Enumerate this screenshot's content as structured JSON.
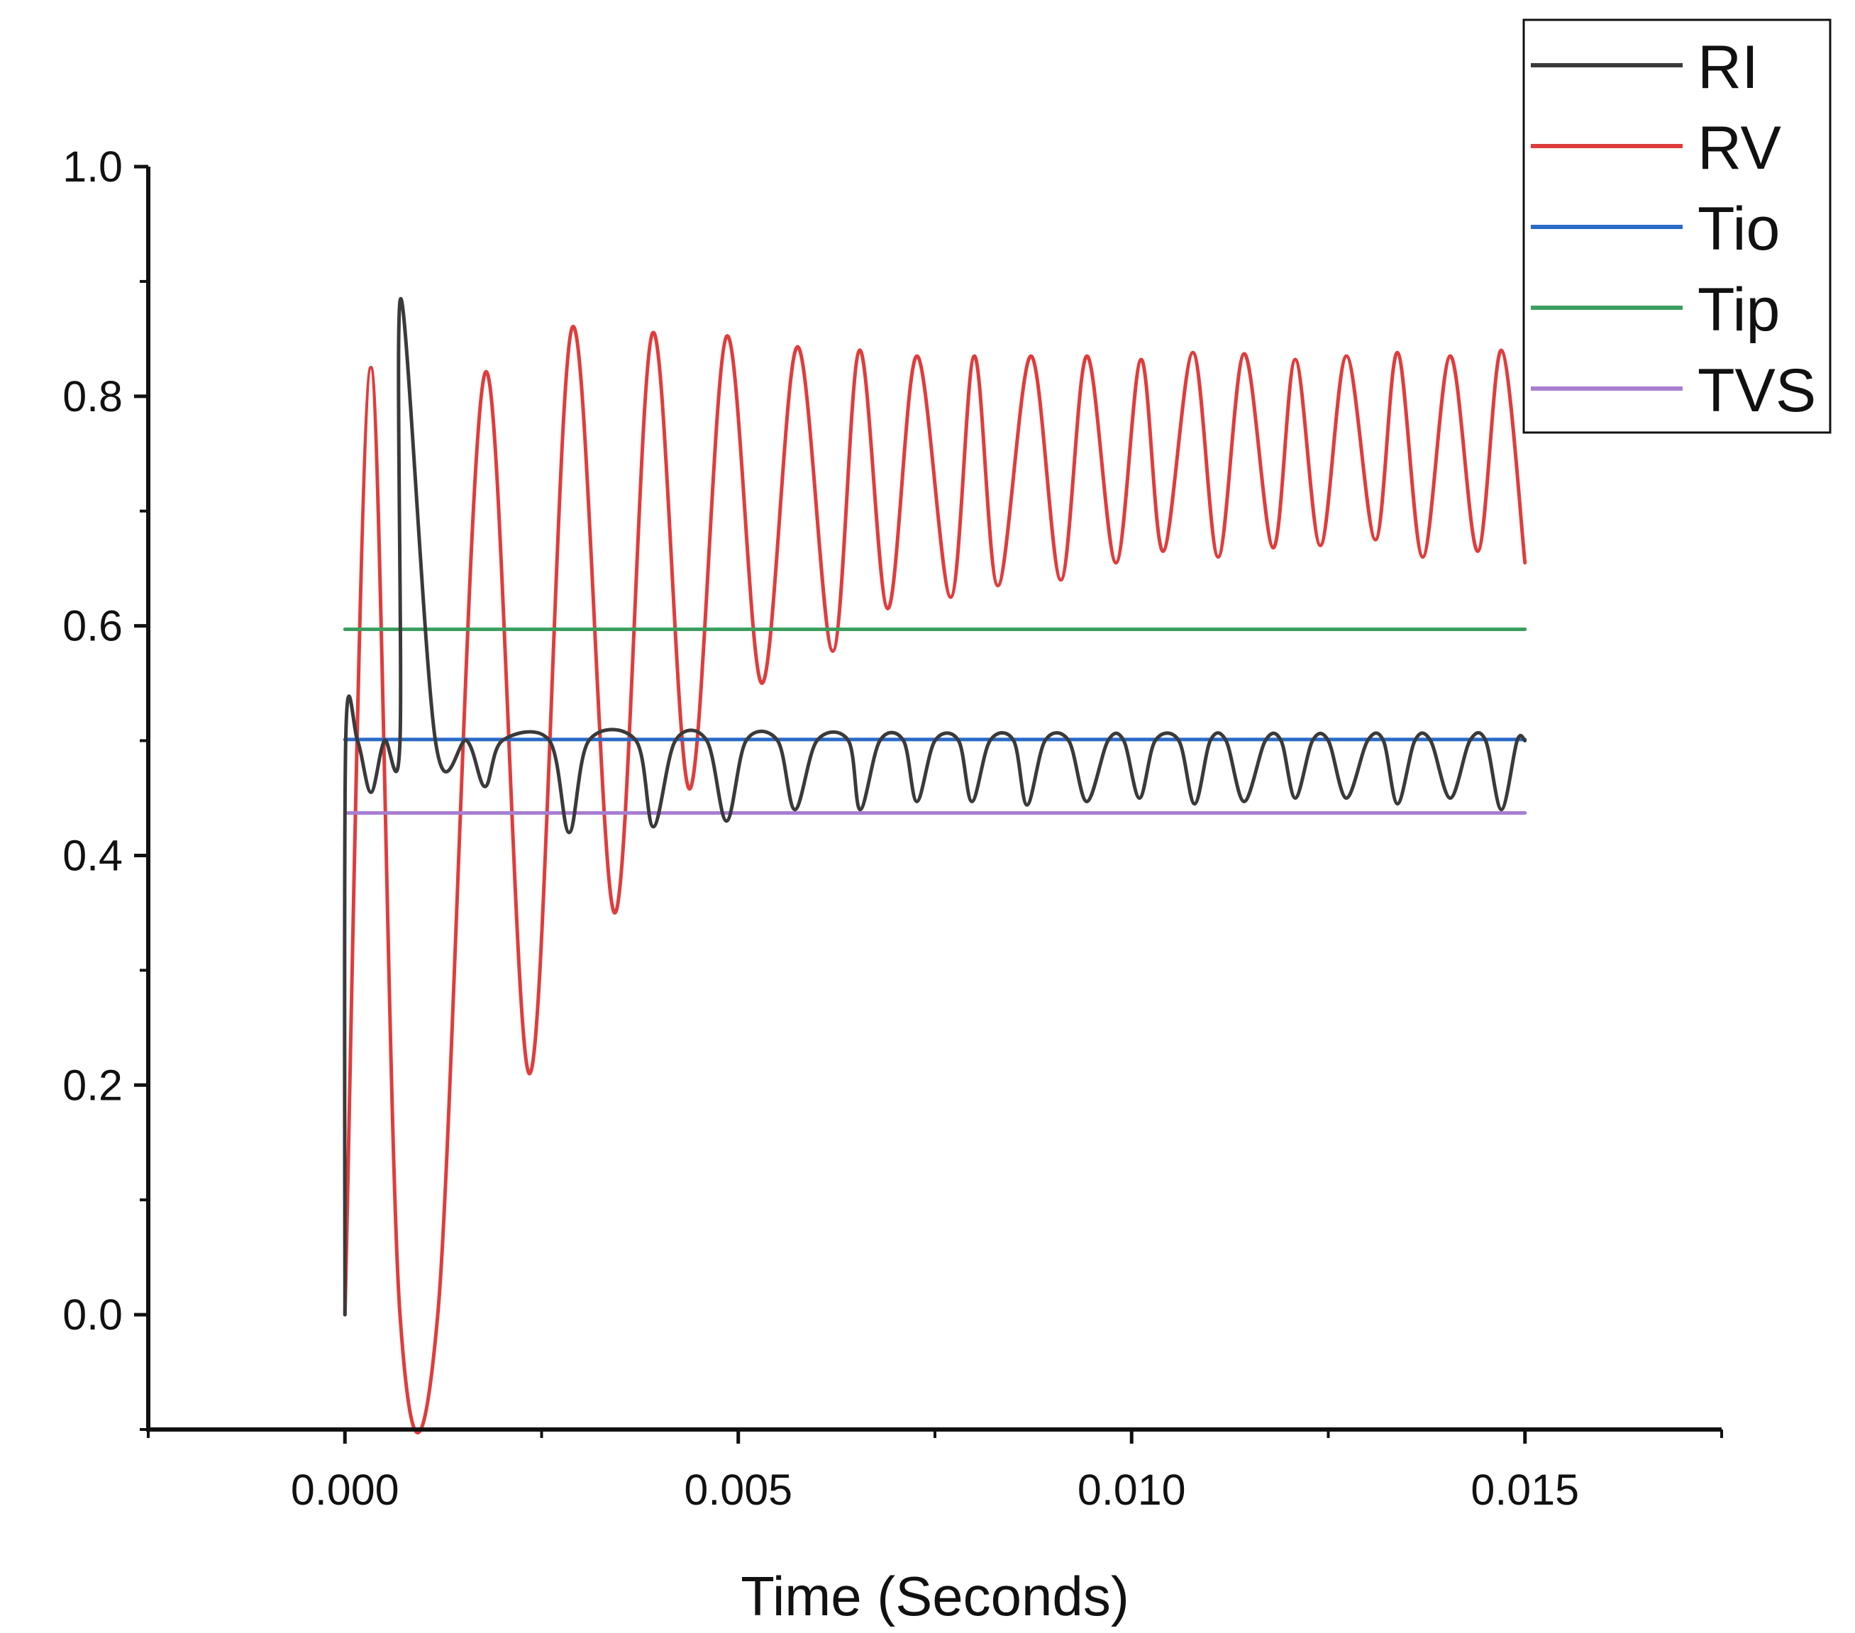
{
  "chart_data": {
    "type": "line",
    "title": "",
    "xlabel": "Time (Seconds)",
    "ylabel": "",
    "xlim": [
      -0.0025,
      0.0175
    ],
    "ylim": [
      -0.1,
      1.0
    ],
    "x_ticks": [
      0.0,
      0.005,
      0.01,
      0.015
    ],
    "x_tick_labels": [
      "0.000",
      "0.005",
      "0.010",
      "0.015"
    ],
    "y_ticks": [
      0.0,
      0.2,
      0.4,
      0.6,
      0.8,
      1.0
    ],
    "y_tick_labels": [
      "0.0",
      "0.2",
      "0.4",
      "0.6",
      "0.8",
      "1.0"
    ],
    "grid": false,
    "legend_position": "top-right",
    "series": [
      {
        "name": "RI",
        "color": "#3a3a3a",
        "points": [
          [
            0.0,
            0.0
          ],
          [
            1e-05,
            0.5
          ],
          [
            0.00016,
            0.5
          ],
          [
            0.00033,
            0.455
          ],
          [
            0.0005,
            0.5
          ],
          [
            0.0007,
            0.5
          ],
          [
            0.00071,
            0.885
          ],
          [
            0.00115,
            0.5
          ],
          [
            0.00155,
            0.5
          ],
          [
            0.00178,
            0.46
          ],
          [
            0.002,
            0.5
          ],
          [
            0.0026,
            0.5
          ],
          [
            0.00285,
            0.42
          ],
          [
            0.0031,
            0.5
          ],
          [
            0.0037,
            0.5
          ],
          [
            0.00392,
            0.425
          ],
          [
            0.0042,
            0.5
          ],
          [
            0.0046,
            0.5
          ],
          [
            0.00485,
            0.43
          ],
          [
            0.0051,
            0.5
          ],
          [
            0.0055,
            0.5
          ],
          [
            0.00572,
            0.44
          ],
          [
            0.006,
            0.5
          ],
          [
            0.0064,
            0.5
          ],
          [
            0.00655,
            0.44
          ],
          [
            0.0068,
            0.5
          ],
          [
            0.0071,
            0.5
          ],
          [
            0.00727,
            0.447
          ],
          [
            0.0075,
            0.5
          ],
          [
            0.0078,
            0.5
          ],
          [
            0.00797,
            0.447
          ],
          [
            0.0082,
            0.5
          ],
          [
            0.0085,
            0.5
          ],
          [
            0.00867,
            0.444
          ],
          [
            0.0089,
            0.5
          ],
          [
            0.0092,
            0.5
          ],
          [
            0.00943,
            0.447
          ],
          [
            0.0097,
            0.5
          ],
          [
            0.0099,
            0.5
          ],
          [
            0.0101,
            0.45
          ],
          [
            0.0103,
            0.5
          ],
          [
            0.0106,
            0.5
          ],
          [
            0.0108,
            0.445
          ],
          [
            0.011,
            0.5
          ],
          [
            0.0112,
            0.5
          ],
          [
            0.01143,
            0.447
          ],
          [
            0.0117,
            0.5
          ],
          [
            0.0119,
            0.5
          ],
          [
            0.01208,
            0.45
          ],
          [
            0.0123,
            0.5
          ],
          [
            0.0125,
            0.5
          ],
          [
            0.01273,
            0.45
          ],
          [
            0.013,
            0.5
          ],
          [
            0.0132,
            0.5
          ],
          [
            0.01338,
            0.445
          ],
          [
            0.0136,
            0.5
          ],
          [
            0.0138,
            0.5
          ],
          [
            0.01405,
            0.45
          ],
          [
            0.0143,
            0.5
          ],
          [
            0.0145,
            0.5
          ],
          [
            0.0147,
            0.44
          ],
          [
            0.0149,
            0.5
          ],
          [
            0.015,
            0.5
          ]
        ]
      },
      {
        "name": "RV",
        "color": "#e03c3c",
        "points": [
          [
            0.0,
            0.0
          ],
          [
            0.00033,
            0.825
          ],
          [
            0.0007,
            0.0
          ],
          [
            0.00118,
            0.0
          ],
          [
            0.00178,
            0.82
          ],
          [
            0.00235,
            0.21
          ],
          [
            0.00289,
            0.86
          ],
          [
            0.00343,
            0.35
          ],
          [
            0.00391,
            0.855
          ],
          [
            0.00438,
            0.458
          ],
          [
            0.00485,
            0.852
          ],
          [
            0.0053,
            0.55
          ],
          [
            0.00575,
            0.843
          ],
          [
            0.0062,
            0.578
          ],
          [
            0.00654,
            0.84
          ],
          [
            0.0069,
            0.615
          ],
          [
            0.00727,
            0.835
          ],
          [
            0.0077,
            0.625
          ],
          [
            0.008,
            0.835
          ],
          [
            0.0083,
            0.635
          ],
          [
            0.00872,
            0.835
          ],
          [
            0.0091,
            0.64
          ],
          [
            0.00943,
            0.835
          ],
          [
            0.0098,
            0.655
          ],
          [
            0.01012,
            0.832
          ],
          [
            0.0104,
            0.665
          ],
          [
            0.01078,
            0.838
          ],
          [
            0.0111,
            0.66
          ],
          [
            0.01143,
            0.837
          ],
          [
            0.0118,
            0.668
          ],
          [
            0.01208,
            0.832
          ],
          [
            0.0124,
            0.67
          ],
          [
            0.01273,
            0.835
          ],
          [
            0.0131,
            0.675
          ],
          [
            0.01338,
            0.838
          ],
          [
            0.0137,
            0.66
          ],
          [
            0.01405,
            0.835
          ],
          [
            0.0144,
            0.665
          ],
          [
            0.0147,
            0.84
          ],
          [
            0.015,
            0.655
          ]
        ]
      },
      {
        "name": "Tio",
        "color": "#2a6ac8",
        "points": [
          [
            0.0,
            0.501
          ],
          [
            0.015,
            0.501
          ]
        ]
      },
      {
        "name": "Tip",
        "color": "#3c9e5e",
        "points": [
          [
            0.0,
            0.597
          ],
          [
            0.015,
            0.597
          ]
        ]
      },
      {
        "name": "TVS",
        "color": "#a87ed0",
        "points": [
          [
            0.0,
            0.437
          ],
          [
            0.015,
            0.437
          ]
        ]
      }
    ]
  }
}
